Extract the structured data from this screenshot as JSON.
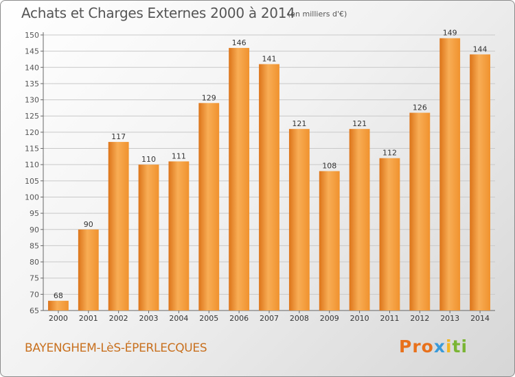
{
  "header": {
    "title": "Achats et Charges Externes 2000 à 2014",
    "subtitle": "(en milliers d'€)"
  },
  "footer": {
    "commune": "BAYENGHEM-LèS-ÉPERLECQUES",
    "logo": {
      "p1": "Pro",
      "p2": "x",
      "p3": "i",
      "p4": "ti"
    }
  },
  "colors": {
    "bar": "#f0922e",
    "bar_light": "#f8ad55",
    "bar_dark": "#dc7419",
    "grid": "#c8c8c8",
    "text": "#555555",
    "accent": "#c8701e"
  },
  "chart_data": {
    "type": "bar",
    "categories": [
      "2000",
      "2001",
      "2002",
      "2003",
      "2004",
      "2005",
      "2006",
      "2007",
      "2008",
      "2009",
      "2010",
      "2011",
      "2012",
      "2013",
      "2014"
    ],
    "values": [
      68,
      90,
      117,
      110,
      111,
      129,
      146,
      141,
      121,
      108,
      121,
      112,
      126,
      149,
      144
    ],
    "title": "Achats et Charges Externes 2000 à 2014",
    "ylim": [
      65,
      150
    ],
    "yticks": [
      65,
      70,
      75,
      80,
      85,
      90,
      95,
      100,
      105,
      110,
      115,
      120,
      125,
      130,
      135,
      140,
      145,
      150
    ],
    "grid": true
  }
}
